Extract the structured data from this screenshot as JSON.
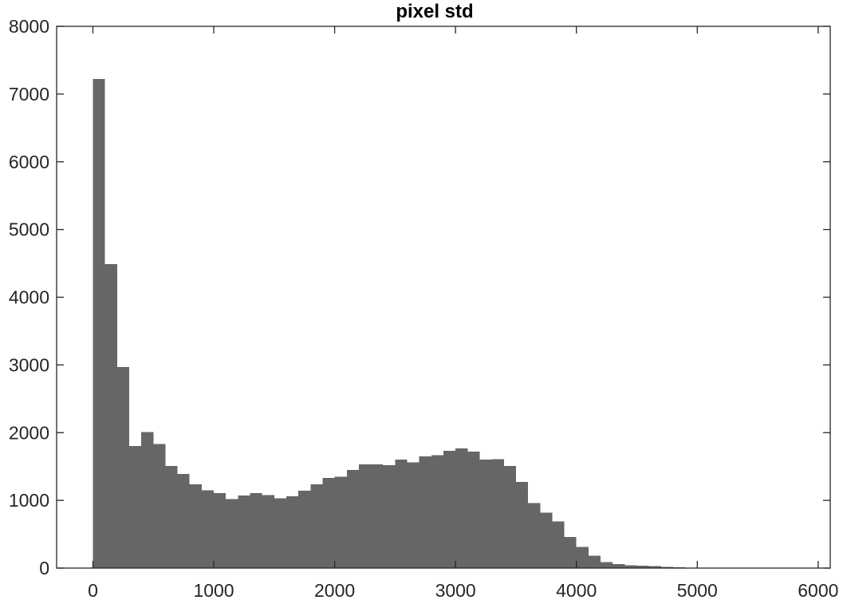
{
  "chart_data": {
    "type": "bar",
    "title": "pixel std",
    "xlabel": "",
    "ylabel": "",
    "xlim": [
      -300,
      6100
    ],
    "ylim": [
      0,
      8000
    ],
    "xticks": [
      0,
      1000,
      2000,
      3000,
      4000,
      5000,
      6000
    ],
    "yticks": [
      0,
      1000,
      2000,
      3000,
      4000,
      5000,
      6000,
      7000,
      8000
    ],
    "bin_start": 0,
    "bin_width": 100,
    "values": [
      7220,
      4490,
      2970,
      1800,
      2010,
      1830,
      1510,
      1390,
      1240,
      1150,
      1110,
      1020,
      1070,
      1110,
      1080,
      1030,
      1060,
      1140,
      1240,
      1330,
      1350,
      1450,
      1530,
      1530,
      1520,
      1600,
      1560,
      1650,
      1670,
      1730,
      1770,
      1720,
      1600,
      1610,
      1510,
      1270,
      960,
      820,
      690,
      460,
      310,
      180,
      90,
      60,
      40,
      35,
      30,
      20,
      10,
      5
    ],
    "grid": false,
    "legend": "none",
    "colors": {
      "bar": "#666666",
      "axis": "#262626"
    }
  }
}
